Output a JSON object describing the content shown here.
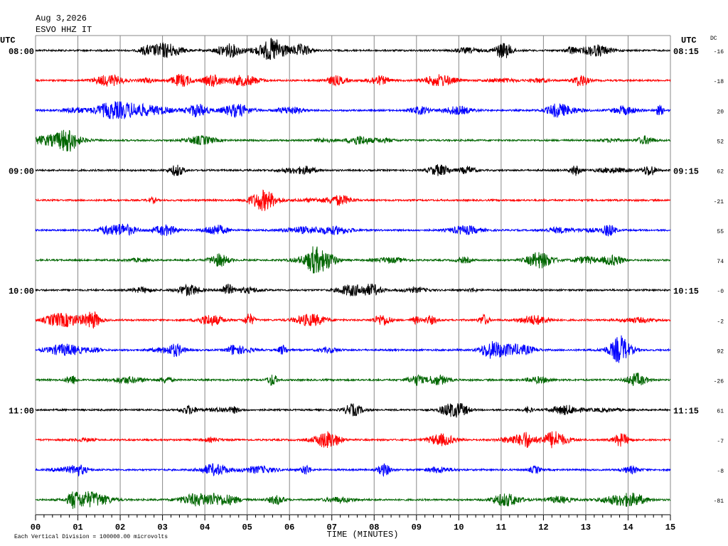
{
  "chart_data": {
    "type": "helicorder",
    "title": "Aug 3,2026",
    "subtitle": "ESVO HHZ IT",
    "left_header": "UTC",
    "right_header": "UTC",
    "dc_header": "DC",
    "categories": [
      "08:00",
      null,
      null,
      null,
      "09:00",
      null,
      null,
      null,
      "10:00",
      null,
      null,
      null,
      "11:00",
      null,
      null,
      null
    ],
    "right_labels": [
      "08:15",
      null,
      null,
      null,
      "09:15",
      null,
      null,
      null,
      "10:15",
      null,
      null,
      null,
      "11:15",
      null,
      null,
      null
    ],
    "dc_offsets": [
      "-16",
      "-18",
      "20",
      "52",
      "62",
      "-21",
      "55",
      "74",
      "-0",
      "-2",
      "92",
      "-26",
      "61",
      "-7",
      "-8",
      "-81"
    ],
    "colors": [
      "#000000",
      "#ff0000",
      "#0000ff",
      "#006600"
    ],
    "xlabel": "TIME (MINUTES)",
    "xlim": [
      0,
      15
    ],
    "xticks": [
      {
        "value": 0,
        "label": "00"
      },
      {
        "value": 1,
        "label": "01"
      },
      {
        "value": 2,
        "label": "02"
      },
      {
        "value": 3,
        "label": "03"
      },
      {
        "value": 4,
        "label": "04"
      },
      {
        "value": 5,
        "label": "05"
      },
      {
        "value": 6,
        "label": "06"
      },
      {
        "value": 7,
        "label": "07"
      },
      {
        "value": 8,
        "label": "08"
      },
      {
        "value": 9,
        "label": "09"
      },
      {
        "value": 10,
        "label": "10"
      },
      {
        "value": 11,
        "label": "11"
      },
      {
        "value": 12,
        "label": "12"
      },
      {
        "value": 13,
        "label": "13"
      },
      {
        "value": 14,
        "label": "14"
      },
      {
        "value": 15,
        "label": "15"
      }
    ],
    "grid": true,
    "footnote": "Each Vertical Division = 100000.00 microvolts"
  }
}
